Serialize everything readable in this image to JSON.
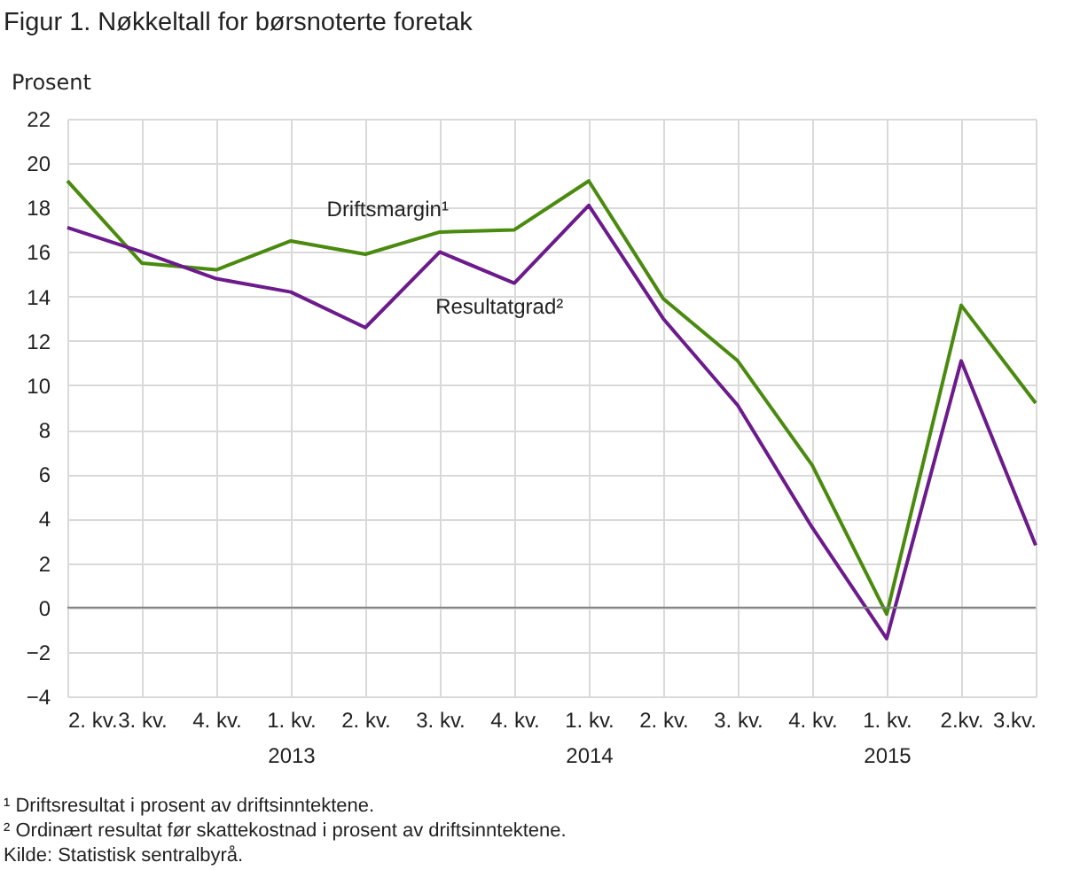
{
  "chart_data": {
    "type": "line",
    "title": "Figur 1. Nøkkeltall for børsnoterte foretak",
    "ylabel": "Prosent",
    "categories": [
      "2. kv.",
      "3. kv.",
      "4. kv.",
      "1. kv.\n2013",
      "2. kv.",
      "3. kv.",
      "4. kv.",
      "1. kv.\n2014",
      "2. kv.",
      "3. kv.",
      "4. kv.",
      "1. kv.\n2015",
      "2.kv.",
      "3.kv."
    ],
    "series": [
      {
        "name": "Driftsmargin¹",
        "color": "#4a8a0e",
        "values": [
          19.2,
          15.5,
          15.2,
          16.5,
          15.9,
          16.9,
          17.0,
          19.2,
          13.9,
          11.1,
          6.4,
          -0.3,
          13.6,
          9.2
        ]
      },
      {
        "name": "Resultatgrad²",
        "color": "#6c1a8c",
        "values": [
          17.1,
          16.0,
          14.8,
          14.2,
          12.6,
          16.0,
          14.6,
          18.1,
          13.0,
          9.1,
          3.6,
          -1.4,
          11.1,
          2.8
        ]
      }
    ],
    "ylim": [
      -4,
      22
    ],
    "yticks": [
      -4,
      -2,
      0,
      2,
      4,
      6,
      8,
      10,
      12,
      14,
      16,
      18,
      20,
      22
    ],
    "grid": true,
    "ref_lines": [
      {
        "axis": "y",
        "value": 0,
        "color": "#808080"
      }
    ],
    "annotations": [
      "¹ Driftsresultat i prosent av driftsinntektene.",
      "² Ordinært resultat før skattekostnad i prosent av driftsinntektene.",
      "Kilde: Statistisk sentralbyrå."
    ]
  }
}
